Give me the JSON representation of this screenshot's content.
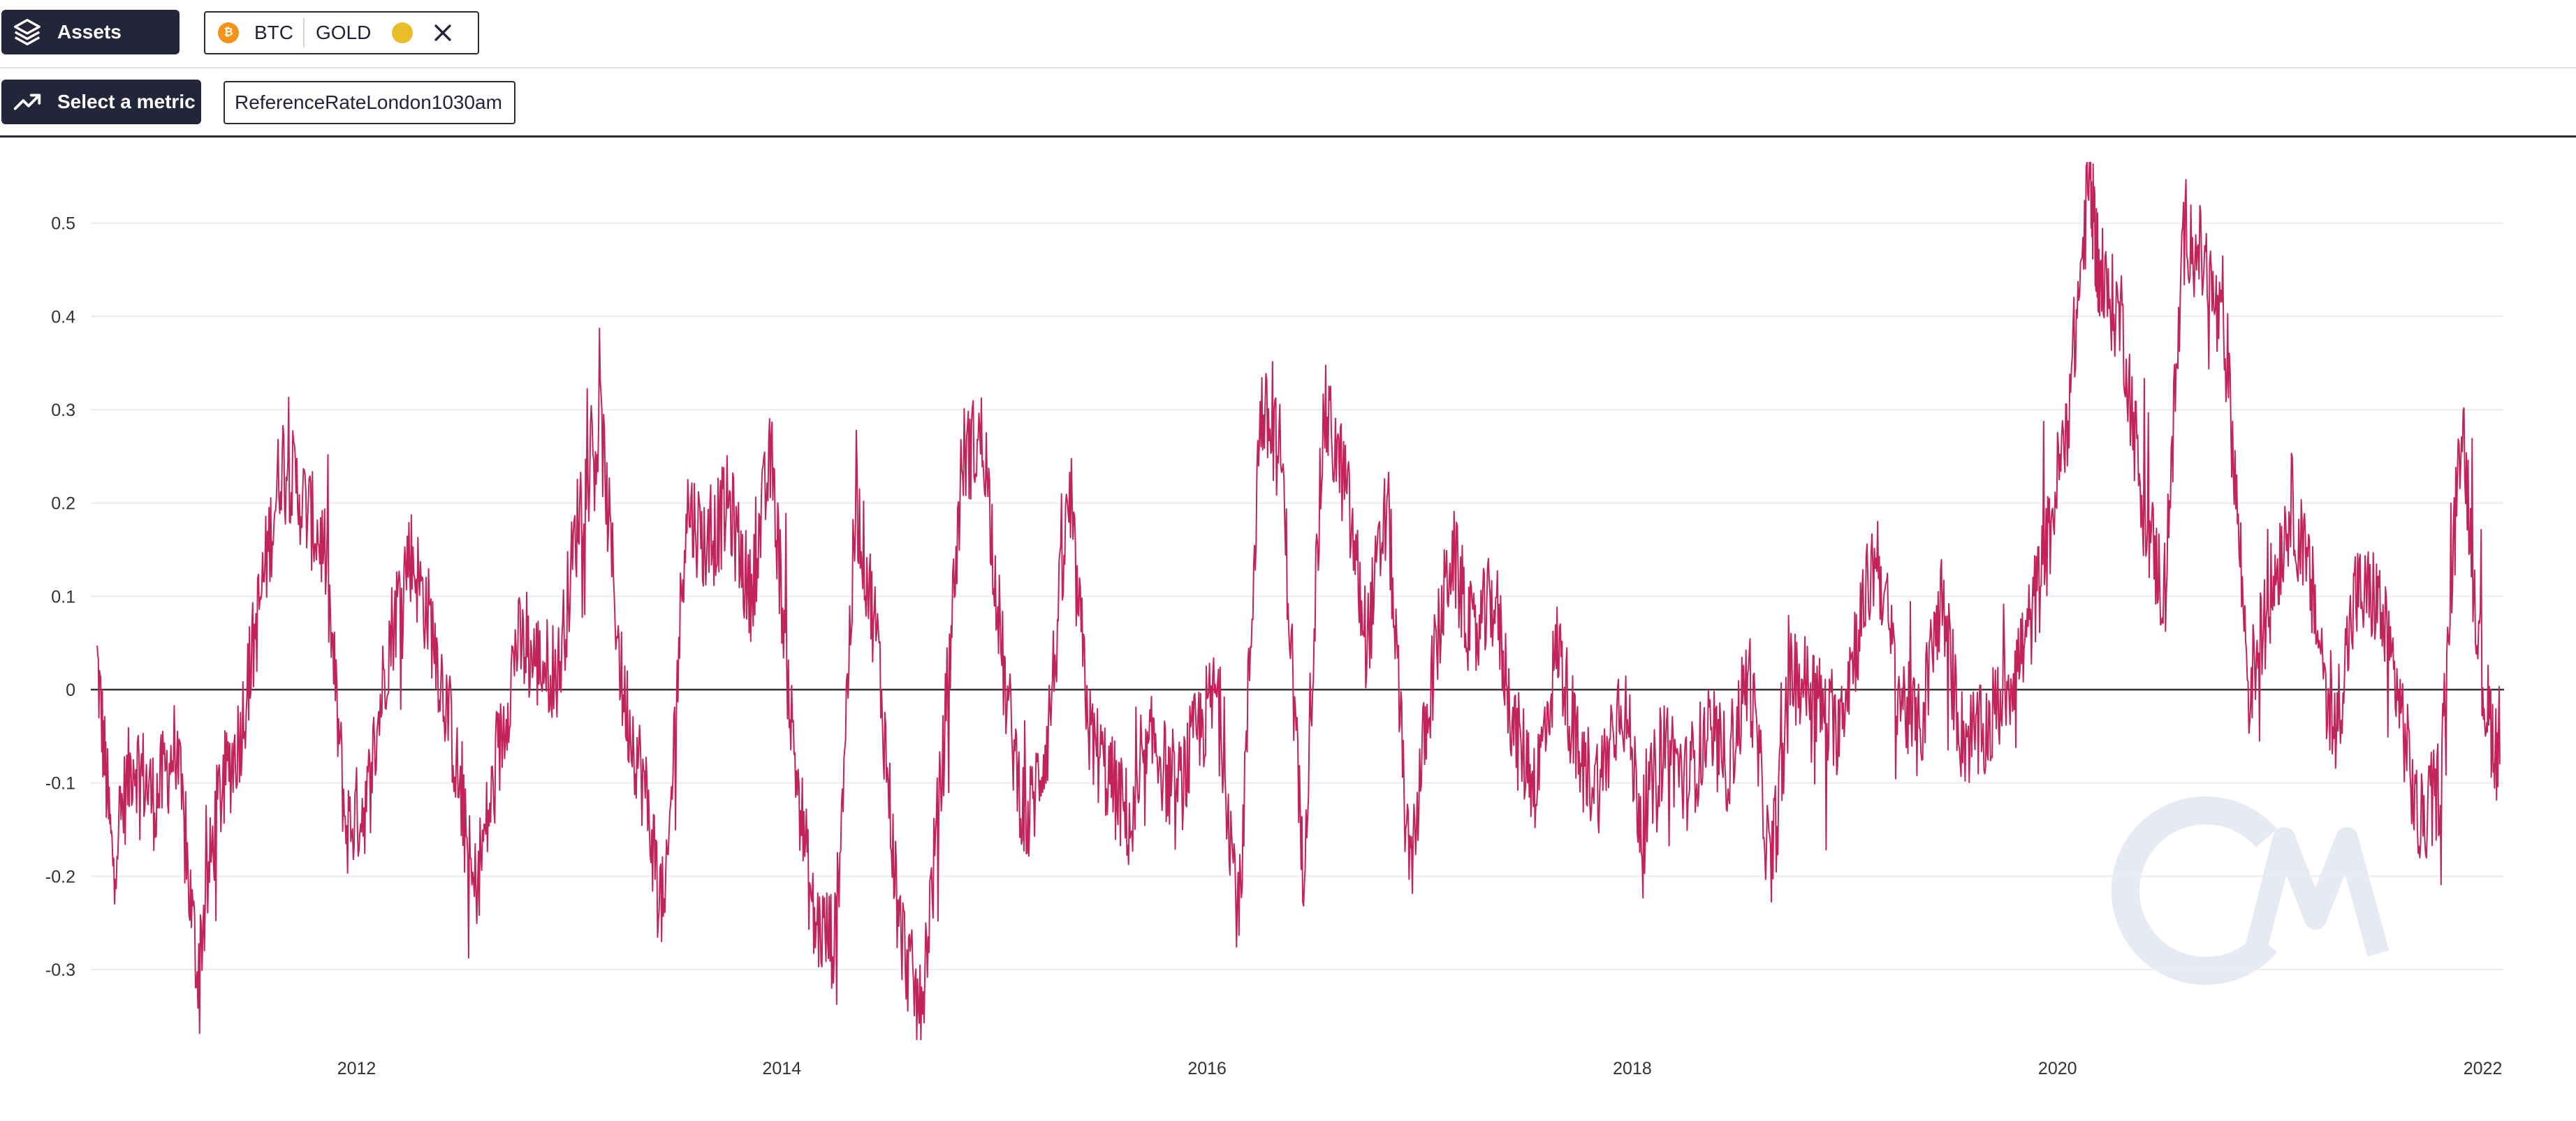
{
  "assets_button": {
    "label": "Assets",
    "icon": "layers-icon"
  },
  "asset_selector": {
    "assets": [
      {
        "label": "BTC",
        "icon": "bitcoin-coin-icon",
        "color": "#f4931a"
      },
      {
        "label": "GOLD",
        "icon": "gold-coin-icon",
        "color": "#e8bd2a"
      }
    ],
    "clear_icon": "close-icon"
  },
  "metric_button": {
    "label": "Select a metric",
    "icon": "trending-up-icon"
  },
  "metric_selector": {
    "value": "ReferenceRateLondon1030am"
  },
  "chart_data": {
    "type": "line",
    "title": "",
    "xlabel": "",
    "ylabel": "",
    "xlim": [
      2010.75,
      2022.1
    ],
    "ylim": [
      -0.38,
      0.57
    ],
    "x_ticks": [
      "2012",
      "2014",
      "2016",
      "2018",
      "2020",
      "2022"
    ],
    "y_ticks": [
      "0.5",
      "0.4",
      "0.3",
      "0.2",
      "0.1",
      "0",
      "-0.1",
      "-0.2",
      "-0.3"
    ],
    "grid": true,
    "zero_line": true,
    "line_color": "#c2245a",
    "watermark_color": "#e7e9f3",
    "series": [
      {
        "x": [
          2010.78,
          2010.85,
          2010.95,
          2011.05,
          2011.15,
          2011.25,
          2011.35,
          2011.45,
          2011.55,
          2011.65,
          2011.75,
          2011.85,
          2011.95,
          2012.05,
          2012.15,
          2012.25,
          2012.35,
          2012.45,
          2012.55,
          2012.65,
          2012.75,
          2012.85,
          2012.95,
          2013.05,
          2013.15,
          2013.25,
          2013.35,
          2013.45,
          2013.55,
          2013.65,
          2013.75,
          2013.85,
          2013.95,
          2014.05,
          2014.15,
          2014.25,
          2014.35,
          2014.45,
          2014.55,
          2014.65,
          2014.75,
          2014.85,
          2014.95,
          2015.05,
          2015.15,
          2015.25,
          2015.35,
          2015.45,
          2015.55,
          2015.65,
          2015.75,
          2015.85,
          2015.95,
          2016.05,
          2016.15,
          2016.25,
          2016.35,
          2016.45,
          2016.55,
          2016.65,
          2016.75,
          2016.85,
          2016.95,
          2017.05,
          2017.15,
          2017.25,
          2017.35,
          2017.45,
          2017.55,
          2017.65,
          2017.75,
          2017.85,
          2017.95,
          2018.05,
          2018.15,
          2018.25,
          2018.35,
          2018.45,
          2018.55,
          2018.65,
          2018.75,
          2018.85,
          2018.95,
          2019.05,
          2019.15,
          2019.25,
          2019.35,
          2019.45,
          2019.55,
          2019.65,
          2019.75,
          2019.85,
          2019.95,
          2020.05,
          2020.15,
          2020.2,
          2020.3,
          2020.4,
          2020.5,
          2020.6,
          2020.7,
          2020.8,
          2020.9,
          2021.0,
          2021.1,
          2021.2,
          2021.3,
          2021.4,
          2021.5,
          2021.6,
          2021.7,
          2021.8,
          2021.9,
          2022.0,
          2022.08
        ],
        "y": [
          0.03,
          -0.18,
          -0.07,
          -0.12,
          -0.06,
          -0.3,
          -0.12,
          -0.05,
          0.1,
          0.25,
          0.2,
          0.15,
          -0.15,
          -0.12,
          0.05,
          0.15,
          0.07,
          -0.05,
          -0.22,
          -0.1,
          0.05,
          0.03,
          0.02,
          0.2,
          0.28,
          0.0,
          -0.1,
          -0.25,
          0.2,
          0.15,
          0.2,
          0.1,
          0.25,
          -0.05,
          -0.25,
          -0.27,
          0.2,
          0.05,
          -0.25,
          -0.35,
          -0.1,
          0.25,
          0.27,
          0.0,
          -0.15,
          -0.05,
          0.2,
          -0.05,
          -0.1,
          -0.15,
          -0.05,
          -0.12,
          -0.05,
          0.0,
          -0.25,
          0.3,
          0.25,
          -0.2,
          0.3,
          0.22,
          0.05,
          0.2,
          -0.2,
          0.0,
          0.15,
          0.05,
          0.1,
          -0.05,
          -0.1,
          0.05,
          -0.08,
          -0.1,
          0.0,
          -0.15,
          -0.05,
          -0.1,
          -0.05,
          -0.08,
          0.02,
          -0.2,
          0.02,
          0.0,
          -0.05,
          0.05,
          0.15,
          0.0,
          -0.05,
          0.1,
          -0.05,
          -0.05,
          0.0,
          0.05,
          0.15,
          0.3,
          0.55,
          0.43,
          0.4,
          0.2,
          0.1,
          0.5,
          0.45,
          0.35,
          -0.0,
          0.1,
          0.2,
          0.1,
          -0.05,
          0.1,
          0.1,
          0.0,
          -0.15,
          -0.1,
          0.3,
          -0.0,
          -0.08
        ]
      }
    ]
  }
}
